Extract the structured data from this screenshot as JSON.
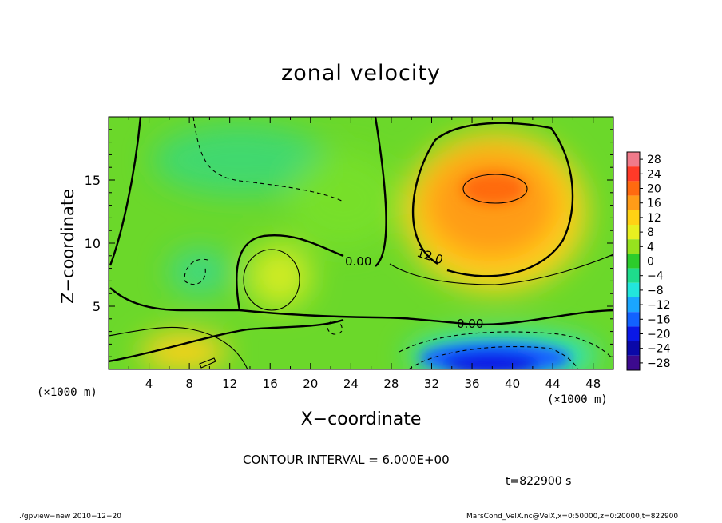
{
  "chart_data": {
    "type": "heatmap",
    "title": "zonal velocity",
    "xlabel": "X−coordinate",
    "ylabel": "Z−coordinate",
    "x_unit_label": "(×1000 m)",
    "xlim": [
      0,
      50
    ],
    "ylim": [
      0,
      20
    ],
    "x_ticks": [
      4,
      8,
      12,
      16,
      20,
      24,
      28,
      32,
      36,
      40,
      44,
      48
    ],
    "y_ticks": [
      5,
      10,
      15
    ],
    "colorbar": {
      "levels": [
        28,
        24,
        20,
        16,
        12,
        8,
        4,
        0,
        -4,
        -8,
        -12,
        -16,
        -20,
        -24,
        -28
      ],
      "labels": [
        "28",
        "24",
        "20",
        "16",
        "12",
        "8",
        "4",
        "0",
        "−4",
        "−8",
        "−12",
        "−16",
        "−20",
        "−24",
        "−28"
      ],
      "colors": [
        "#f07a8a",
        "#ff3a28",
        "#ff6a10",
        "#ff9c18",
        "#ffd214",
        "#e8f020",
        "#96e21e",
        "#2ccc2c",
        "#1edc8c",
        "#22e6dc",
        "#1aa6ff",
        "#1262ff",
        "#0a18e6",
        "#0a08a8",
        "#3c0a8e"
      ]
    },
    "contour_labels": [
      "0.00",
      "12.0",
      "0.00"
    ],
    "contour_interval": 6.0,
    "features": [
      {
        "kind": "jet max",
        "x": 38,
        "z": 14.5,
        "value": 20
      },
      {
        "kind": "jet min",
        "x": 38,
        "z": 0.8,
        "value": -26
      },
      {
        "kind": "weak max",
        "x": 16,
        "z": 7.5,
        "value": 9
      },
      {
        "kind": "weak max",
        "x": 9.5,
        "z": 1,
        "value": 12
      }
    ],
    "contour_interval_text": "CONTOUR INTERVAL = 6.000E+00",
    "time_text": "t=822900 s",
    "footer_left": "./gpview−new  2010−12−20",
    "footer_right": "MarsCond_VelX.nc@VelX,x=0:50000,z=0:20000,t=822900"
  }
}
